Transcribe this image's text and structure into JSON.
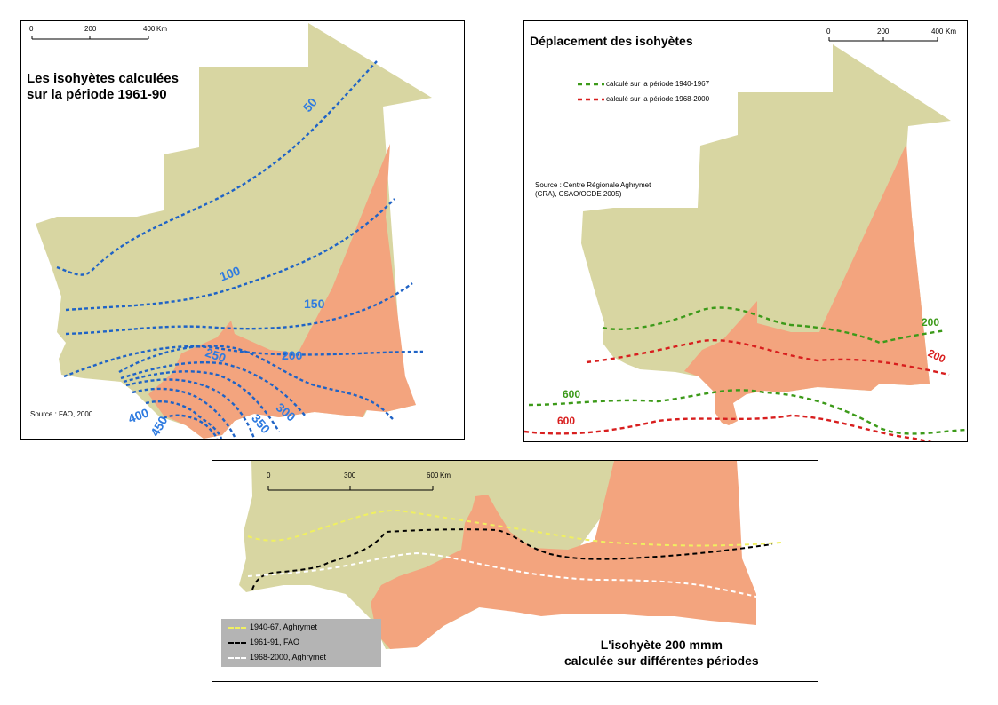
{
  "colors": {
    "land": "#d8d6a2",
    "zone": "#f3a47e",
    "blue_line": "#1f63c6",
    "blue_label": "#2f7be0",
    "green_line": "#3c9a19",
    "red_line": "#d81e1e",
    "yellow_line": "#f0f060",
    "black_line": "#000000",
    "white_line": "#ffffff",
    "legend_bg": "#b4b4b4"
  },
  "panel_a": {
    "title_line1": "Les isohyètes calculées",
    "title_line2": "sur la période 1961-90",
    "source": "Source : FAO, 2000",
    "scale": {
      "ticks": [
        "0",
        "200",
        "400"
      ],
      "unit": "Km"
    },
    "isohyet_labels": [
      "50",
      "100",
      "150",
      "200",
      "250",
      "300",
      "350",
      "400",
      "450"
    ]
  },
  "panel_b": {
    "title": "Déplacement des isohyètes",
    "scale": {
      "ticks": [
        "0",
        "200",
        "400"
      ],
      "unit": "Km"
    },
    "legend": [
      {
        "label": "calculé sur la période 1940-1967",
        "color": "green"
      },
      {
        "label": "calculé sur la période 1968-2000",
        "color": "red"
      }
    ],
    "source_line1": "Source : Centre Régionale Aghrymet",
    "source_line2": "(CRA), CSAO/OCDE 2005)",
    "isohyet_labels": {
      "green_200": "200",
      "red_200": "200",
      "green_600": "600",
      "red_600": "600"
    }
  },
  "panel_c": {
    "title_line1": "L'isohyète 200 mmm",
    "title_line2": "calculée sur différentes périodes",
    "scale": {
      "ticks": [
        "0",
        "300",
        "600"
      ],
      "unit": "Km"
    },
    "legend": [
      {
        "label": "1940-67, Aghrymet",
        "color": "yellow"
      },
      {
        "label": "1961-91, FAO",
        "color": "black"
      },
      {
        "label": "1968-2000, Aghrymet",
        "color": "white"
      }
    ]
  }
}
